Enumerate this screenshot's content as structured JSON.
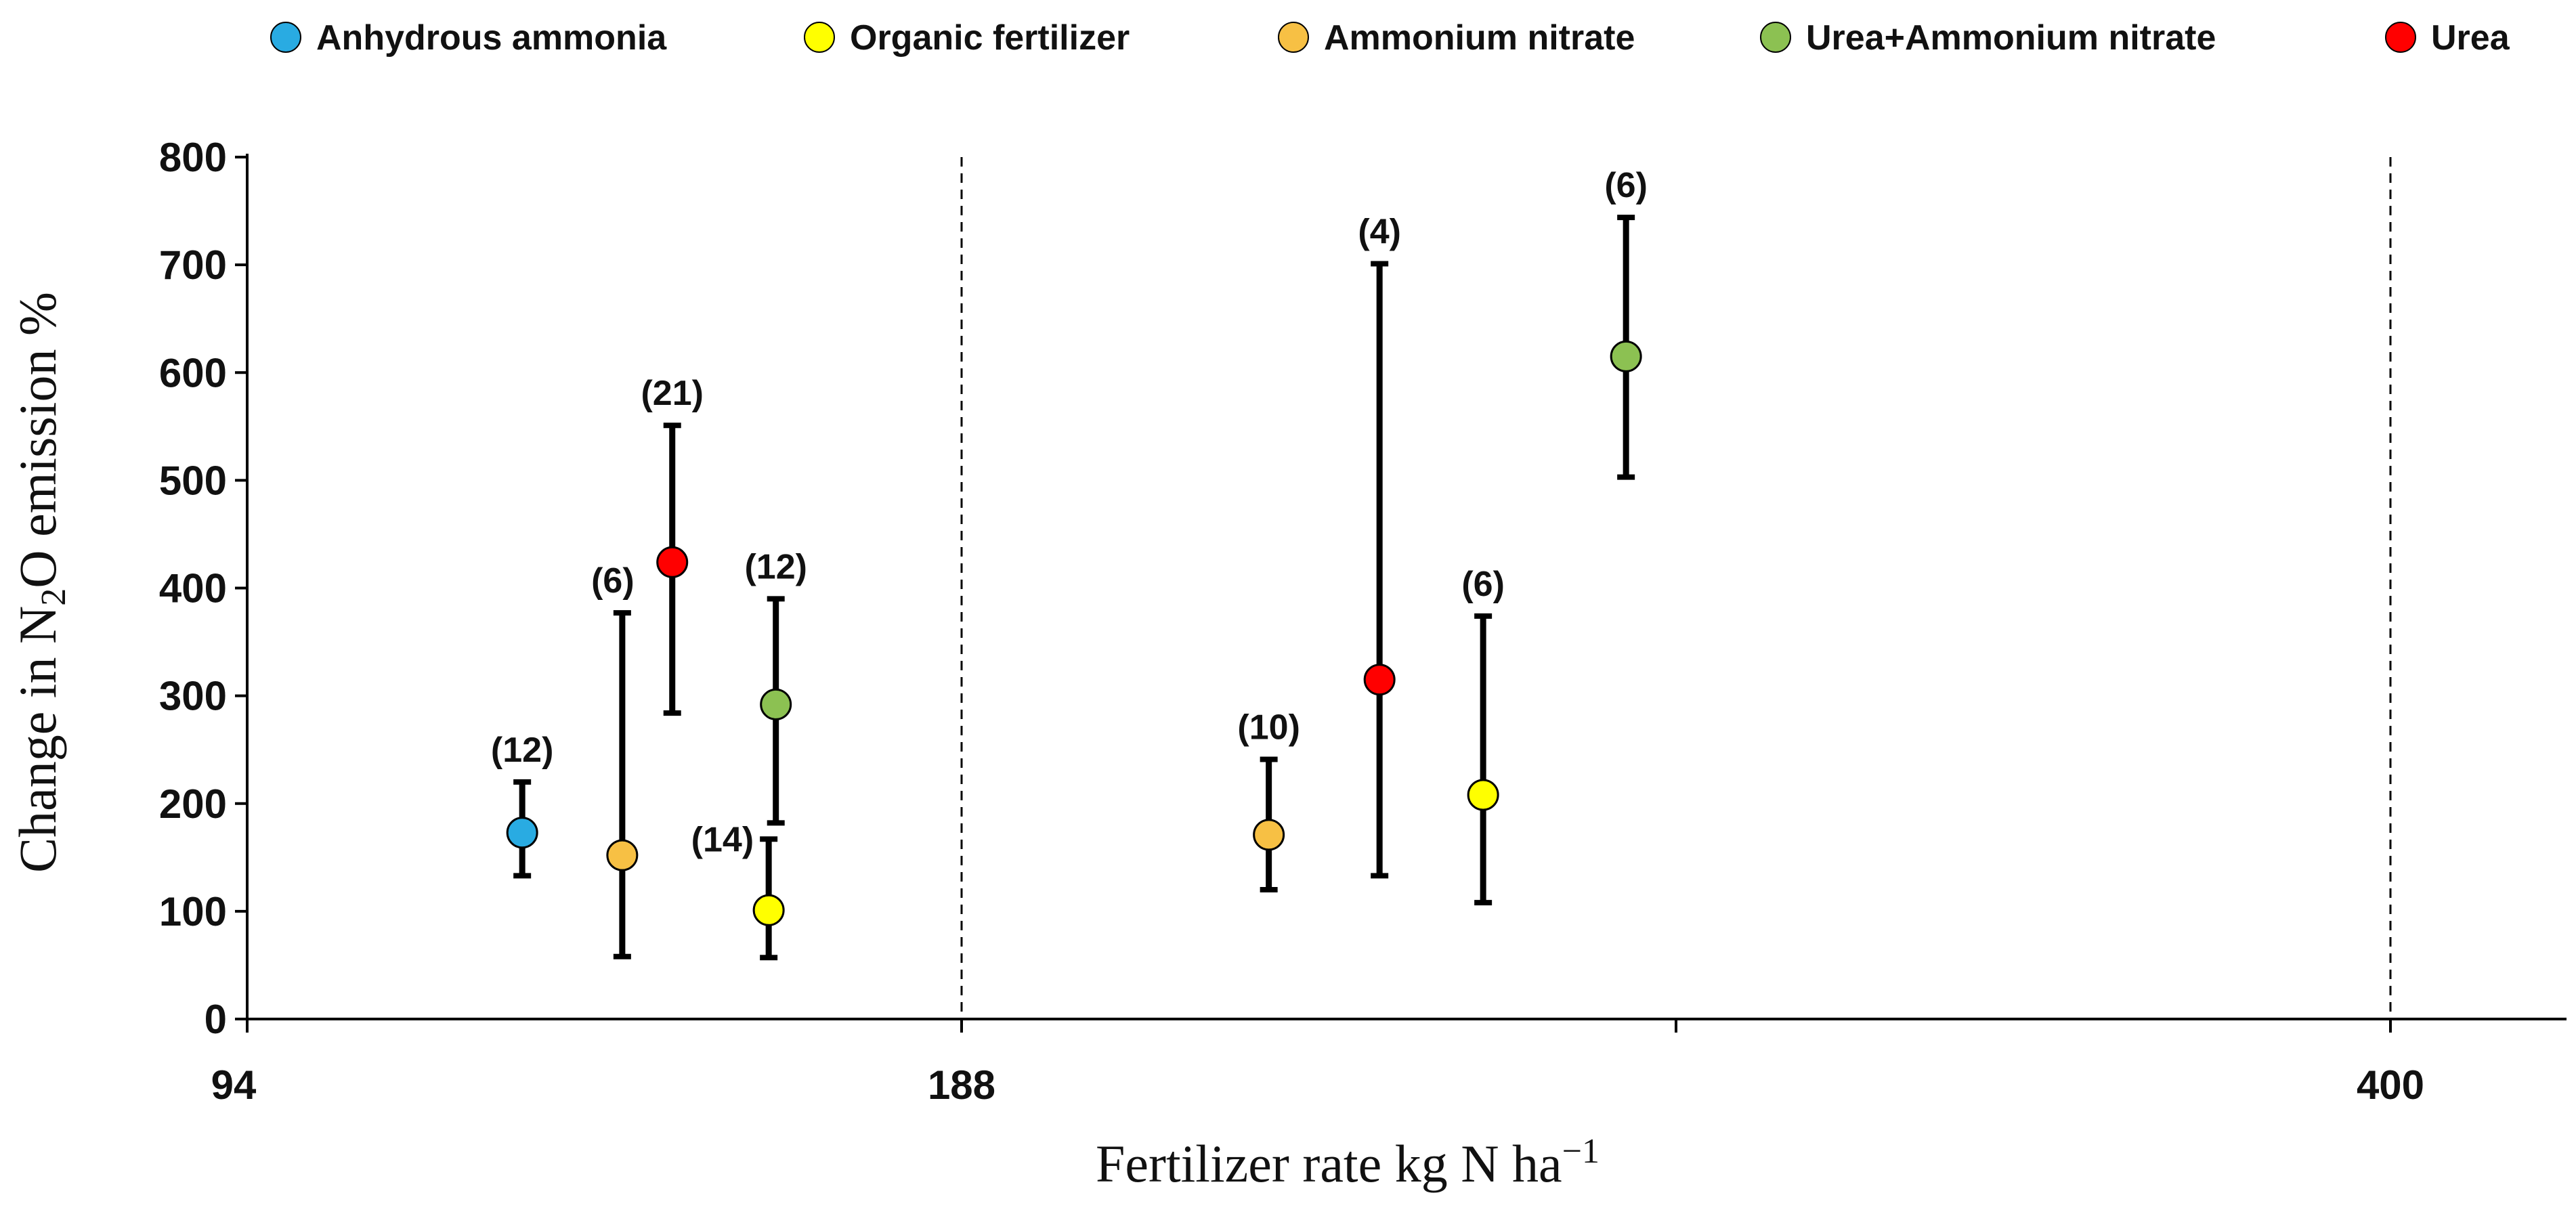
{
  "chart_data": {
    "type": "scatter",
    "xlabel": "Fertilizer rate kg N ha",
    "xlabel_superscript": "−1",
    "ylabel_parts": [
      "Change in N",
      "2",
      "O emission %"
    ],
    "ylim": [
      0,
      800
    ],
    "yticks": [
      "0",
      "100",
      "200",
      "300",
      "400",
      "500",
      "600",
      "700",
      "800"
    ],
    "x_sections": [
      "94",
      "188",
      "400"
    ],
    "x_range": [
      0,
      3.25
    ],
    "x_boundaries": [
      1,
      3
    ],
    "grid": false,
    "legend_position": "top",
    "legend": [
      {
        "label": "Anhydrous ammonia",
        "color": "#29abe2"
      },
      {
        "label": "Organic fertilizer",
        "color": "#ffff00"
      },
      {
        "label": "Ammonium nitrate",
        "color": "#f7c044"
      },
      {
        "label": "Urea+Ammonium nitrate",
        "color": "#8cc152"
      },
      {
        "label": "Urea",
        "color": "#ff0000"
      }
    ],
    "series": [
      {
        "name": "Anhydrous ammonia",
        "color": "#29abe2",
        "x": 0.385,
        "y": 173,
        "low": 133,
        "high": 220,
        "n_label": "(12)",
        "label_side": "top"
      },
      {
        "name": "Ammonium nitrate",
        "color": "#f7c044",
        "x": 0.525,
        "y": 152,
        "low": 58,
        "high": 377,
        "n_label": "(6)",
        "label_side": "topleft"
      },
      {
        "name": "Urea",
        "color": "#ff0000",
        "x": 0.595,
        "y": 424,
        "low": 284,
        "high": 551,
        "n_label": "(21)",
        "label_side": "top"
      },
      {
        "name": "Urea+Ammonium nitrate",
        "color": "#8cc152",
        "x": 0.74,
        "y": 292,
        "low": 182,
        "high": 390,
        "n_label": "(12)",
        "label_side": "top"
      },
      {
        "name": "Organic fertilizer",
        "color": "#ffff00",
        "x": 0.73,
        "y": 101,
        "low": 57,
        "high": 167,
        "n_label": "(14)",
        "label_side": "left"
      },
      {
        "name": "Ammonium nitrate",
        "color": "#f7c044",
        "x": 1.43,
        "y": 171,
        "low": 120,
        "high": 241,
        "n_label": "(10)",
        "label_side": "top"
      },
      {
        "name": "Urea",
        "color": "#ff0000",
        "x": 1.585,
        "y": 315,
        "low": 133,
        "high": 701,
        "n_label": "(4)",
        "label_side": "top"
      },
      {
        "name": "Organic fertilizer",
        "color": "#ffff00",
        "x": 1.73,
        "y": 208,
        "low": 108,
        "high": 374,
        "n_label": "(6)",
        "label_side": "top"
      },
      {
        "name": "Urea+Ammonium nitrate",
        "color": "#8cc152",
        "x": 1.93,
        "y": 615,
        "low": 503,
        "high": 744,
        "n_label": "(6)",
        "label_side": "top"
      }
    ]
  }
}
